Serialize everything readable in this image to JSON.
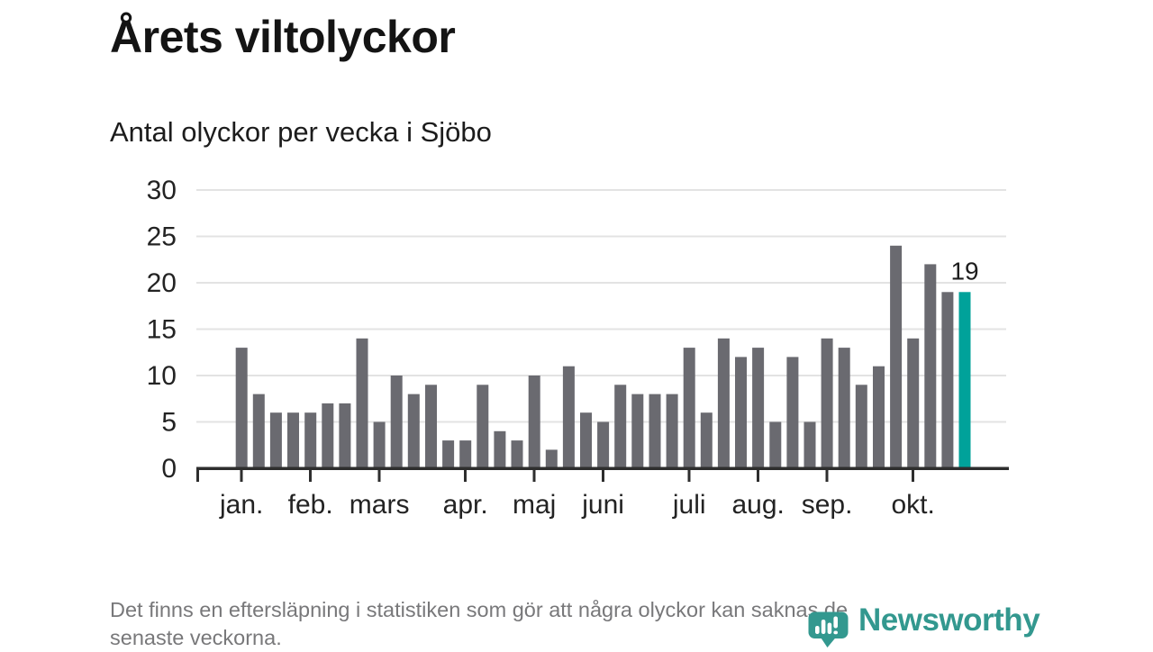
{
  "header": {
    "title": "Årets viltolyckor",
    "subtitle": "Antal olyckor per vecka i Sjöbo"
  },
  "chart_data": {
    "type": "bar",
    "title": "Årets viltolyckor",
    "subtitle": "Antal olyckor per vecka i Sjöbo",
    "x_unit": "vecka",
    "values": [
      13,
      8,
      6,
      6,
      6,
      7,
      7,
      14,
      5,
      10,
      8,
      9,
      3,
      3,
      9,
      4,
      3,
      10,
      2,
      11,
      6,
      5,
      9,
      8,
      8,
      8,
      13,
      6,
      14,
      12,
      13,
      5,
      12,
      5,
      14,
      13,
      9,
      11,
      24,
      14,
      22,
      19,
      19
    ],
    "weeks_count": 43,
    "highlight_index": 42,
    "annotation": {
      "text": "19",
      "target_index": 42
    },
    "months": [
      {
        "label": "jan.",
        "week": 1
      },
      {
        "label": "feb.",
        "week": 5
      },
      {
        "label": "mars",
        "week": 9
      },
      {
        "label": "apr.",
        "week": 14
      },
      {
        "label": "maj",
        "week": 18
      },
      {
        "label": "juni",
        "week": 22
      },
      {
        "label": "juli",
        "week": 27
      },
      {
        "label": "aug.",
        "week": 31
      },
      {
        "label": "sep.",
        "week": 35
      },
      {
        "label": "okt.",
        "week": 40
      }
    ],
    "yticks": [
      0,
      5,
      10,
      15,
      20,
      25,
      30
    ],
    "ylim": [
      0,
      30
    ],
    "grid": true,
    "legend": "none",
    "colors": {
      "bar": "#6A6A70",
      "highlight": "#00A29A",
      "axis": "#2E2E2E",
      "gridline": "#E3E3E3",
      "tick_label": "#232323",
      "annotation": "#1D1D1D"
    }
  },
  "footer": {
    "line1": "Det finns en eftersläpning i statistiken som gör att några olyckor kan saknas de",
    "line2": "senaste veckorna."
  },
  "logo": {
    "text": "Newsworthy",
    "color": "#33988F",
    "icon": "speech-bubble-bar-chart-icon"
  }
}
